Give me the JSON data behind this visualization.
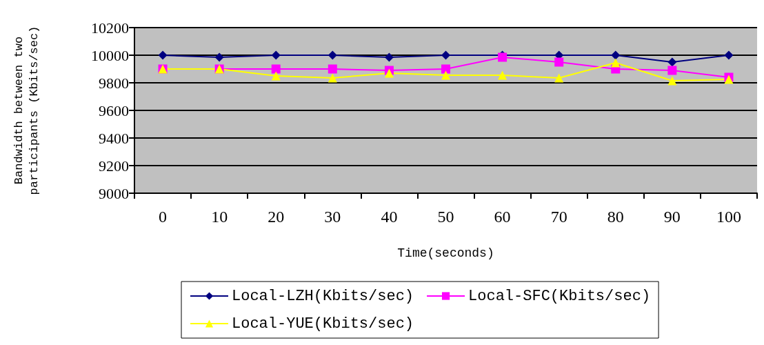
{
  "chart_data": {
    "type": "line",
    "xlabel": "Time(seconds)",
    "ylabel": "Bandwidth between two\nparticipants (Kbits/sec)",
    "categories": [
      "0",
      "10",
      "20",
      "30",
      "40",
      "50",
      "60",
      "70",
      "80",
      "90",
      "100"
    ],
    "series": [
      {
        "name": "Local-LZH(Kbits/sec)",
        "color": "#000080",
        "marker": "diamond",
        "values": [
          10000,
          9985,
          10000,
          10000,
          9985,
          10000,
          10000,
          10000,
          10000,
          9950,
          10000
        ]
      },
      {
        "name": "Local-SFC(Kbits/sec)",
        "color": "#ff00ff",
        "marker": "square",
        "values": [
          9900,
          9900,
          9900,
          9900,
          9890,
          9900,
          9985,
          9950,
          9900,
          9890,
          9840
        ]
      },
      {
        "name": "Local-YUE(Kbits/sec)",
        "color": "#ffff00",
        "marker": "triangle",
        "values": [
          9900,
          9900,
          9850,
          9835,
          9870,
          9855,
          9855,
          9835,
          9945,
          9815,
          9825
        ]
      }
    ],
    "ylim": [
      9000,
      10200
    ],
    "yticks": [
      9000,
      9200,
      9400,
      9600,
      9800,
      10000,
      10200
    ],
    "grid": "y",
    "legend": "bottom",
    "line_style": "solid"
  }
}
